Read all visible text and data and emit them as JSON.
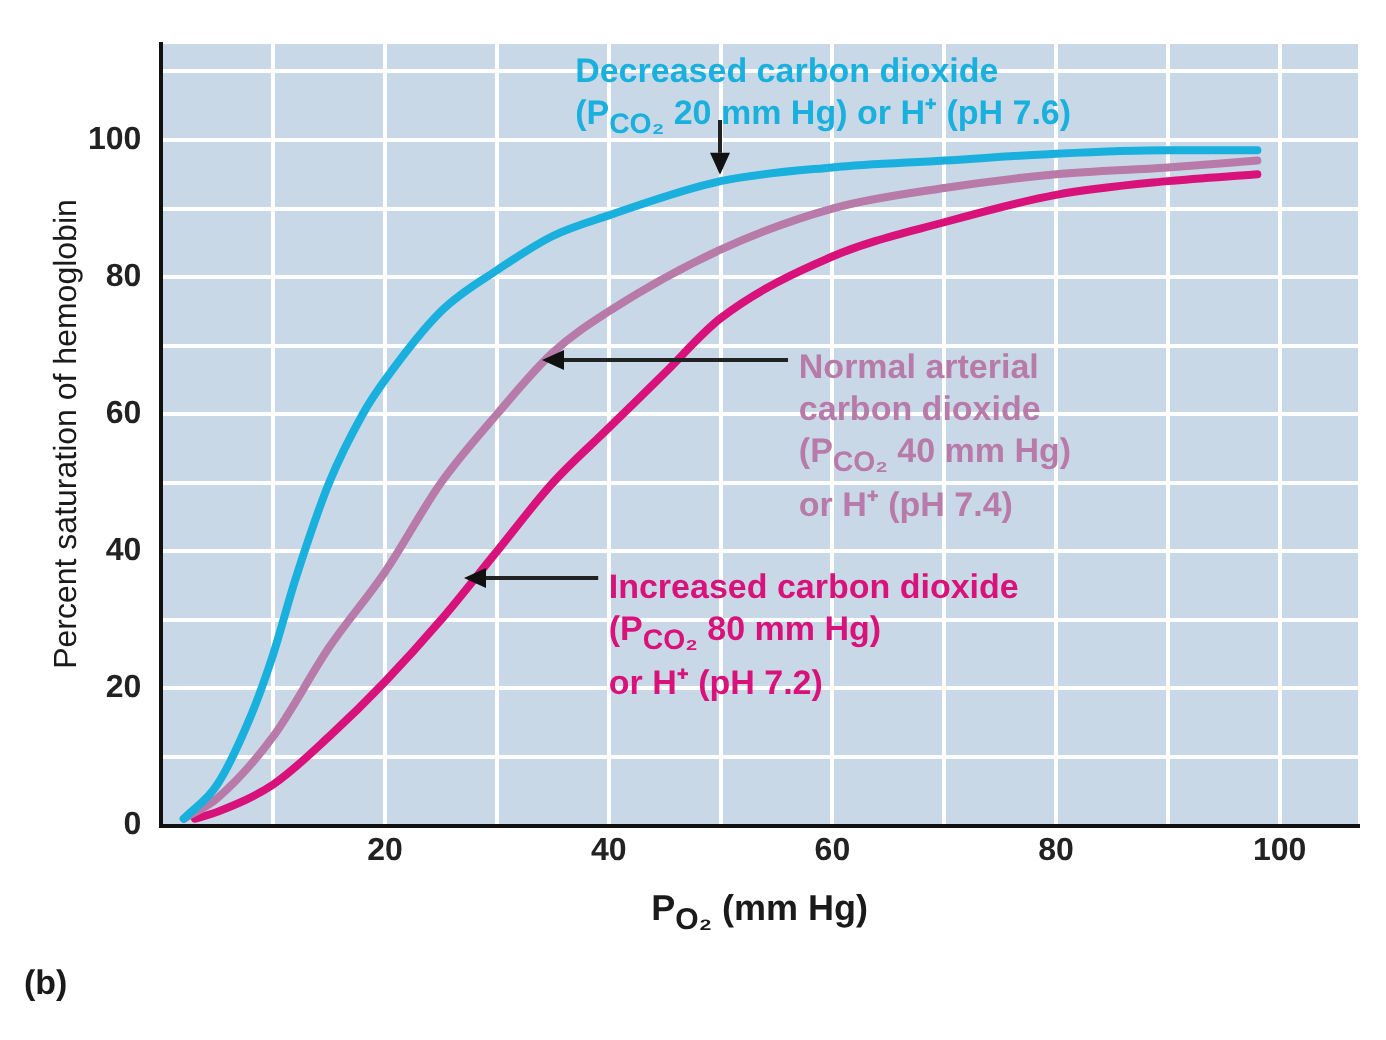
{
  "chart_data": {
    "type": "line",
    "xlabel": "P$_{O₂}$ (mm Hg)",
    "ylabel": "Percent saturation of hemoglobin",
    "annotations": [
      "(b)"
    ],
    "series": [
      {
        "name": "Decreased carbon dioxide\n(P$_{CO₂}$ 20 mm Hg) or H⁺ (pH 7.6)",
        "color": "#1ab0de",
        "x": [
          2,
          5,
          8,
          10,
          12,
          15,
          18,
          20,
          25,
          30,
          35,
          40,
          50,
          60,
          70,
          80,
          90,
          98
        ],
        "values": [
          1,
          6,
          16,
          25,
          36,
          50,
          60,
          65,
          75,
          81,
          86,
          89,
          94,
          96,
          97,
          98,
          98.5,
          98.5
        ]
      },
      {
        "name": "Normal arterial\ncarbon dioxide\n(P$_{CO₂}$ 40 mm Hg)\nor H⁺ (pH 7.4)",
        "color": "#b87aa8",
        "x": [
          2,
          5,
          10,
          15,
          20,
          25,
          30,
          35,
          40,
          50,
          60,
          70,
          80,
          90,
          98
        ],
        "values": [
          1,
          4,
          13,
          26,
          37,
          50,
          60,
          69,
          75,
          84,
          90,
          93,
          95,
          96,
          97
        ]
      },
      {
        "name": "Increased carbon dioxide\n(P$_{CO₂}$ 80 mm Hg)\nor H⁺ (pH 7.2)",
        "color": "#d8127a",
        "x": [
          3,
          5,
          10,
          15,
          20,
          25,
          30,
          35,
          40,
          45,
          50,
          60,
          70,
          80,
          90,
          98
        ],
        "values": [
          1,
          2,
          6,
          13,
          21,
          30,
          40,
          50,
          58,
          66,
          74,
          83,
          88,
          92,
          94,
          95
        ]
      }
    ],
    "xlim": [
      0,
      107
    ],
    "ylim": [
      0,
      114
    ],
    "xticks": [
      {
        "value": 10,
        "label": null
      },
      20,
      {
        "value": 30,
        "label": null
      },
      40,
      {
        "value": 50,
        "label": null
      },
      60,
      {
        "value": 70,
        "label": null
      },
      80,
      {
        "value": 90,
        "label": null
      },
      100
    ],
    "yticks": [
      0,
      {
        "value": 10,
        "label": null
      },
      20,
      {
        "value": 30,
        "label": null
      },
      40,
      {
        "value": 50,
        "label": null
      },
      60,
      {
        "value": 70,
        "label": null
      },
      80,
      {
        "value": 90,
        "label": null
      },
      100,
      {
        "value": 110,
        "label": null
      }
    ],
    "grid": true
  }
}
